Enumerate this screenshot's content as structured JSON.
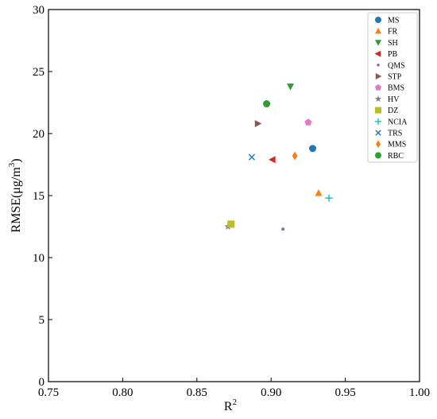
{
  "chart_data": {
    "type": "scatter",
    "title": "",
    "xlabel": "R",
    "xlabel_sup": "2",
    "ylabel": "RMSE(μg/m",
    "ylabel_sup": "3",
    "ylabel_close": ")",
    "xlim": [
      0.75,
      1.0
    ],
    "ylim": [
      0,
      30
    ],
    "xticks": [
      "0.75",
      "0.80",
      "0.85",
      "0.90",
      "0.95",
      "1.00"
    ],
    "xtick_values": [
      0.75,
      0.8,
      0.85,
      0.9,
      0.95,
      1.0
    ],
    "yticks": [
      "0",
      "5",
      "10",
      "15",
      "20",
      "25",
      "30"
    ],
    "ytick_values": [
      0,
      5,
      10,
      15,
      20,
      25,
      30
    ],
    "grid": false,
    "legend_position": "top-right",
    "series": [
      {
        "name": "MS",
        "marker": "circle",
        "color": "#1f77b4",
        "x": 0.928,
        "y": 18.8
      },
      {
        "name": "FR",
        "marker": "triangle-up",
        "color": "#ff7f0e",
        "x": 0.932,
        "y": 15.2
      },
      {
        "name": "SH",
        "marker": "triangle-down",
        "color": "#2ca02c",
        "x": 0.913,
        "y": 23.8
      },
      {
        "name": "PB",
        "marker": "triangle-left",
        "color": "#d62728",
        "x": 0.901,
        "y": 17.9
      },
      {
        "name": "QMS",
        "marker": "small-dot",
        "color": "#9467bd",
        "x": 0.908,
        "y": 12.3
      },
      {
        "name": "STP",
        "marker": "triangle-right",
        "color": "#8c564b",
        "x": 0.891,
        "y": 20.8
      },
      {
        "name": "BMS",
        "marker": "pentagon",
        "color": "#e377c2",
        "x": 0.925,
        "y": 20.9
      },
      {
        "name": "HV",
        "marker": "star",
        "color": "#7f7f7f",
        "x": 0.871,
        "y": 12.5
      },
      {
        "name": "DZ",
        "marker": "square",
        "color": "#bcbd22",
        "x": 0.873,
        "y": 12.7
      },
      {
        "name": "NCIA",
        "marker": "plus",
        "color": "#17becf",
        "x": 0.939,
        "y": 14.8
      },
      {
        "name": "TRS",
        "marker": "x",
        "color": "#1f77b4",
        "x": 0.887,
        "y": 18.1
      },
      {
        "name": "MMS",
        "marker": "diamond",
        "color": "#ff7f0e",
        "x": 0.916,
        "y": 18.2
      },
      {
        "name": "RBC",
        "marker": "circle",
        "color": "#2ca02c",
        "x": 0.897,
        "y": 22.4
      }
    ]
  }
}
